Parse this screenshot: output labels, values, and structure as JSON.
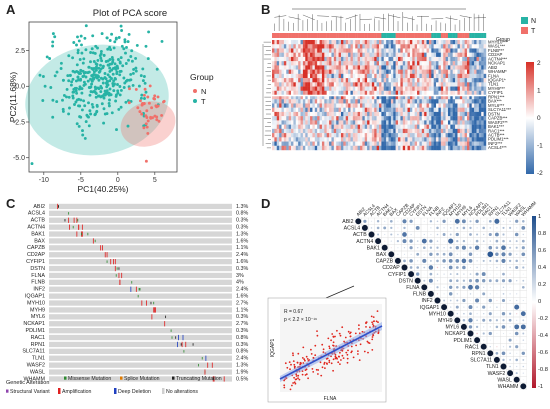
{
  "panels": {
    "a": "A",
    "b": "B",
    "c": "C",
    "d": "D"
  },
  "pca": {
    "title": "Plot of PCA score",
    "xlabel": "PC1(40.25%)",
    "ylabel": "PC2(11.68%)",
    "xticks": [
      "-10",
      "-5",
      "0",
      "5"
    ],
    "yticks": [
      "2.5",
      "0.0",
      "-2.5",
      "-5.0"
    ],
    "legend_title": "Group",
    "legend": [
      {
        "name": "N",
        "color": "#f0706a"
      },
      {
        "name": "T",
        "color": "#27b3a5"
      }
    ]
  },
  "heatmap": {
    "group_label": "Group",
    "legend": [
      {
        "name": "N",
        "color": "#27b3a5"
      },
      {
        "name": "T",
        "color": "#f0706a"
      }
    ],
    "scale": [
      "2",
      "1",
      "0",
      "-1",
      "-2"
    ],
    "genes": [
      "MYH10***",
      "WASL***",
      "FLNB***",
      "CD2AP",
      "ACTN4***",
      "NCKAP1",
      "ABI2",
      "WHAMM*",
      "FLNA",
      "IQGAP1*",
      "TLN1",
      "MYH9***",
      "CYFIP1",
      "RPN1***",
      "BAX***",
      "MYL6***",
      "SLC7A11***",
      "DSTN",
      "CAPZB***",
      "WASF2***",
      "BAK1***",
      "RAC1***",
      "ACTB***",
      "PDLIM1***",
      "INF2***",
      "ACSL4***"
    ]
  },
  "oncoprint": {
    "genes": [
      "ABI2",
      "ACSL4",
      "ACTB",
      "ACTN4",
      "BAK1",
      "BAX",
      "CAPZB",
      "CD2AP",
      "CYFIP1",
      "DSTN",
      "FLNA",
      "FLNB",
      "INF2",
      "IQGAP1",
      "MYH10",
      "MYH9",
      "MYL6",
      "NCKAP1",
      "PDLIM1",
      "RAC1",
      "RPN1",
      "SLC7A11",
      "TLN1",
      "WASF2",
      "WASL",
      "WHAMM"
    ],
    "percents": [
      "1.3%",
      "0.8%",
      "0.3%",
      "0.3%",
      "1.3%",
      "1.6%",
      "1.1%",
      "2.4%",
      "1.6%",
      "0.3%",
      "3%",
      "4%",
      "2.4%",
      "1.6%",
      "2.7%",
      "1.1%",
      "0.3%",
      "2.7%",
      "0.3%",
      "0.8%",
      "0.3%",
      "0.8%",
      "2.4%",
      "1.3%",
      "1.9%",
      "0.5%"
    ],
    "legend_title": "Genetic Alteration",
    "legend": [
      {
        "name": "Missense Mutation",
        "color": "#2e8b30"
      },
      {
        "name": "Splice Mutation",
        "color": "#e07b00"
      },
      {
        "name": "Truncating Mutation",
        "color": "#222222"
      },
      {
        "name": "Structural Variant",
        "color": "#8e44ad"
      },
      {
        "name": "Amplification",
        "color": "#e02020"
      },
      {
        "name": "Deep Deletion",
        "color": "#2040c0"
      },
      {
        "name": "No alterations",
        "color": "#d0d0d0"
      }
    ]
  },
  "corr": {
    "genes": [
      "ABI2",
      "ACSL4",
      "ACTB",
      "ACTN4",
      "BAK1",
      "BAX",
      "CAPZB",
      "CD2AP",
      "CYFIP1",
      "DSTN",
      "FLNA",
      "FLNB",
      "INF2",
      "IQGAP1",
      "MYH10",
      "MYH9",
      "MYL6",
      "NCKAP1",
      "PDLIM1",
      "RAC1",
      "RPN1",
      "SLC7A11",
      "TLN1",
      "WASF2",
      "WASL",
      "WHAMM"
    ],
    "scale": [
      "1",
      "0.8",
      "0.6",
      "0.4",
      "0.2",
      "0",
      "-0.2",
      "-0.4",
      "-0.6",
      "-0.8",
      "-1"
    ],
    "inset": {
      "stat_r": "R = 0.67",
      "stat_p": "p < 2.2 × 10⁻¹⁶",
      "xlabel": "FLNA",
      "ylabel": "IQGAP1"
    }
  },
  "chart_data": [
    {
      "type": "scatter",
      "title": "Plot of PCA score",
      "xlabel": "PC1(40.25%)",
      "ylabel": "PC2(11.68%)",
      "xlim": [
        -12,
        8
      ],
      "ylim": [
        -6,
        4.5
      ],
      "legend_placement": "right",
      "series": [
        {
          "name": "N"
        },
        {
          "name": "T"
        }
      ]
    },
    {
      "type": "heatmap",
      "colorbar": [
        -2,
        2
      ]
    },
    {
      "type": "heatmap",
      "colorbar": [
        -1,
        1
      ]
    },
    {
      "type": "scatter",
      "xlabel": "FLNA",
      "ylabel": "IQGAP1"
    }
  ]
}
